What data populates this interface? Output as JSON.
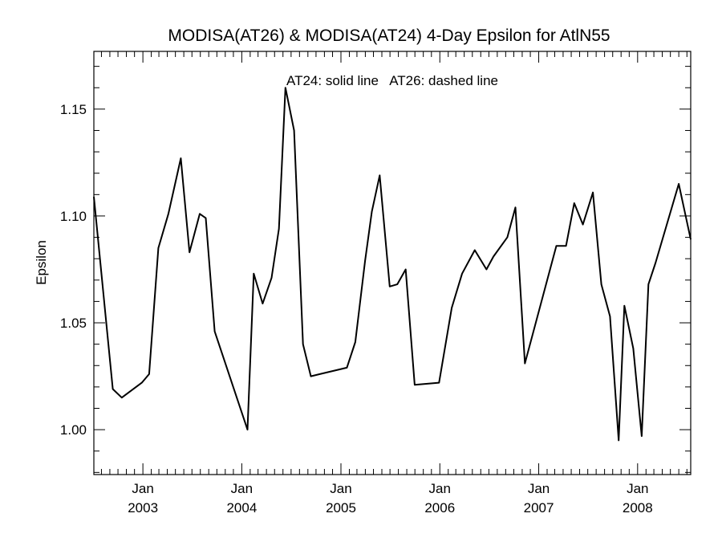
{
  "chart_data": {
    "type": "line",
    "title": "MODISA(AT26) & MODISA(AT24) 4-Day Epsilon for AtlN55",
    "annotation": "AT24: solid line   AT26: dashed line",
    "xlabel": "",
    "ylabel": "Epsilon",
    "xlim": [
      "2002-07-04",
      "2008-07-15"
    ],
    "ylim": [
      0.979,
      1.177
    ],
    "yticks": [
      1.0,
      1.05,
      1.1,
      1.15
    ],
    "ytick_labels": [
      "1.00",
      "1.05",
      "1.10",
      "1.15"
    ],
    "xticks": [
      {
        "date": "2003-01-01",
        "month": "Jan",
        "year": "2003"
      },
      {
        "date": "2004-01-01",
        "month": "Jan",
        "year": "2004"
      },
      {
        "date": "2005-01-01",
        "month": "Jan",
        "year": "2005"
      },
      {
        "date": "2006-01-01",
        "month": "Jan",
        "year": "2006"
      },
      {
        "date": "2007-01-01",
        "month": "Jan",
        "year": "2007"
      },
      {
        "date": "2008-01-01",
        "month": "Jan",
        "year": "2008"
      }
    ],
    "series": [
      {
        "style": "solid",
        "color": "#000000",
        "x": [
          "2002-07-04",
          "2002-09-12",
          "2002-10-15",
          "2002-12-28",
          "2003-01-24",
          "2003-02-27",
          "2003-04-05",
          "2003-05-21",
          "2003-06-22",
          "2003-07-30",
          "2003-08-21",
          "2003-09-23",
          "2004-01-22",
          "2004-02-14",
          "2004-03-18",
          "2004-04-20",
          "2004-05-17",
          "2004-06-10",
          "2004-07-12",
          "2004-08-14",
          "2004-09-12",
          "2004-10-15",
          "2005-01-23",
          "2005-02-23",
          "2005-03-31",
          "2005-04-25",
          "2005-05-24",
          "2005-06-30",
          "2005-07-28",
          "2005-08-28",
          "2005-09-30",
          "2005-12-29",
          "2006-02-14",
          "2006-03-24",
          "2006-05-10",
          "2006-06-22",
          "2006-07-18",
          "2006-09-07",
          "2006-10-07",
          "2006-11-11",
          "2007-03-07",
          "2007-04-12",
          "2007-05-12",
          "2007-06-13",
          "2007-07-20",
          "2007-08-20",
          "2007-09-21",
          "2007-10-23",
          "2007-11-13",
          "2007-12-16",
          "2008-01-16",
          "2008-02-10",
          "2008-03-07",
          "2008-06-01",
          "2008-07-15"
        ],
        "y": [
          1.109,
          1.019,
          1.015,
          1.022,
          1.026,
          1.085,
          1.101,
          1.127,
          1.083,
          1.101,
          1.099,
          1.046,
          1.0,
          1.073,
          1.059,
          1.071,
          1.094,
          1.16,
          1.14,
          1.04,
          1.025,
          1.026,
          1.029,
          1.041,
          1.079,
          1.102,
          1.119,
          1.067,
          1.068,
          1.075,
          1.021,
          1.022,
          1.057,
          1.073,
          1.084,
          1.075,
          1.081,
          1.09,
          1.104,
          1.031,
          1.086,
          1.086,
          1.106,
          1.096,
          1.111,
          1.068,
          1.053,
          0.995,
          1.058,
          1.038,
          0.997,
          1.068,
          1.078,
          1.115,
          1.089
        ]
      }
    ]
  }
}
